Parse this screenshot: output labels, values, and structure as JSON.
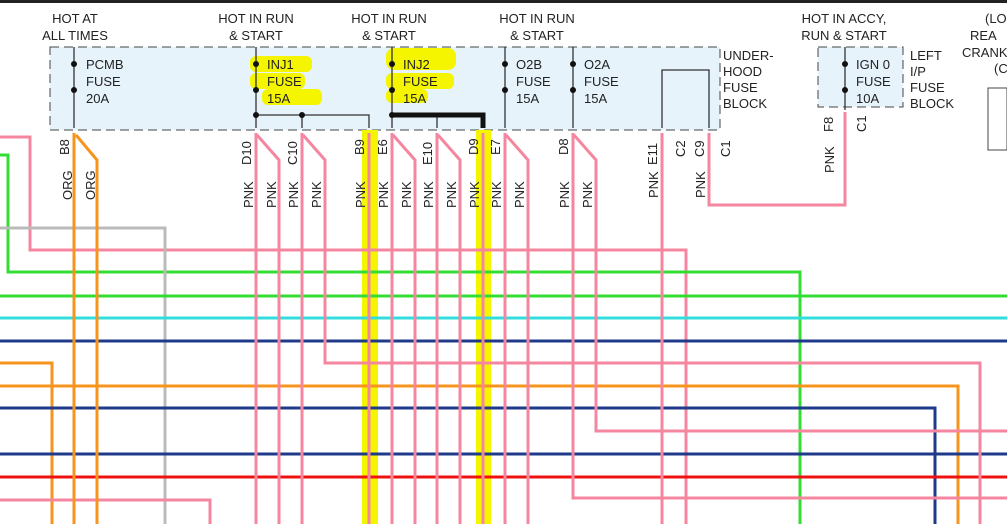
{
  "sources": {
    "hot_at_all_times": [
      "HOT AT",
      "ALL TIMES"
    ],
    "hot_run_start_1": [
      "HOT IN RUN",
      "& START"
    ],
    "hot_run_start_2": [
      "HOT IN RUN",
      "& START"
    ],
    "hot_run_start_3": [
      "HOT IN RUN",
      "& START"
    ],
    "hot_accy": [
      "HOT IN ACCY,",
      "RUN & START"
    ],
    "partial_right": [
      "(LO",
      "REA",
      "CRANK",
      "(C"
    ]
  },
  "fuses": [
    {
      "name": "PCMB",
      "type": "FUSE",
      "rating": "20A",
      "highlighted": false
    },
    {
      "name": "INJ1",
      "type": "FUSE",
      "rating": "15A",
      "highlighted": true
    },
    {
      "name": "INJ2",
      "type": "FUSE",
      "rating": "15A",
      "highlighted": true
    },
    {
      "name": "O2B",
      "type": "FUSE",
      "rating": "15A",
      "highlighted": false
    },
    {
      "name": "O2A",
      "type": "FUSE",
      "rating": "15A",
      "highlighted": false
    },
    {
      "name": "IGN 0",
      "type": "FUSE",
      "rating": "10A",
      "highlighted": false
    }
  ],
  "blocks": {
    "underhood": [
      "UNDER-",
      "HOOD",
      "FUSE",
      "BLOCK"
    ],
    "left_ip": [
      "LEFT",
      "I/P",
      "FUSE",
      "BLOCK"
    ]
  },
  "connectors": [
    "B8",
    "D10",
    "C10",
    "B9",
    "E6",
    "E10",
    "D9",
    "E7",
    "D8",
    "E11",
    "C2",
    "C9",
    "C1",
    "F8",
    "C1"
  ],
  "wire_colors": {
    "org": "ORG",
    "pnk": "PNK"
  },
  "colors": {
    "highlight": "#f5f500",
    "pink": "#f4879f",
    "orange": "#f7941d",
    "green": "#33dd33",
    "cyan": "#33dddd",
    "navy": "#1f3a8a",
    "red": "#ee1111",
    "gray": "#bbbbbb",
    "block_fill": "#e6f3fb"
  }
}
